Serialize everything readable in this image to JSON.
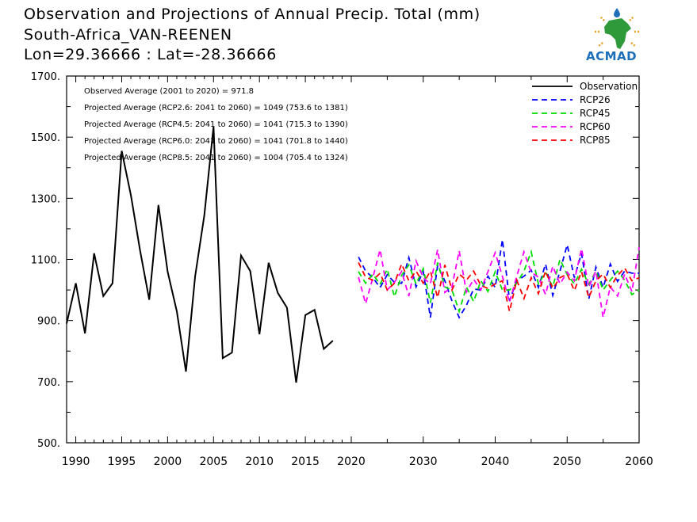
{
  "title": {
    "line1": "Observation and Projections of Annual Precip. Total (mm)",
    "line2": "South-Africa_VAN-REENEN",
    "line3": "Lon=29.36666 : Lat=-28.36666"
  },
  "logo": {
    "text": "ACMAD"
  },
  "annotations": [
    "Observed Average (2001 to 2020) = 971.8",
    "Projected Average (RCP2.6: 2041 to 2060) = 1049 (753.6 to 1381)",
    "Projected Average (RCP4.5: 2041 to 2060) = 1041 (715.3 to 1390)",
    "Projected Average (RCP6.0: 2041 to 2060) = 1041 (701.8 to 1440)",
    "Projected Average (RCP8.5: 2041 to 2060) = 1004 (705.4 to 1324)"
  ],
  "colors": {
    "observation": "#000000",
    "rcp26": "#0000ff",
    "rcp45": "#00dd00",
    "rcp60": "#ff00ff",
    "rcp85": "#ff0000"
  },
  "chart_data": {
    "type": "line",
    "xlim": [
      1989,
      2060
    ],
    "ylim": [
      500,
      1700
    ],
    "y_ticks": [
      500,
      700,
      900,
      1100,
      1300,
      1500,
      1700
    ],
    "y_tick_labels": [
      "500.",
      "700.",
      "900.",
      "1100.",
      "1300.",
      "1500.",
      "1700."
    ],
    "x_ticks_period1": [
      1990,
      1995,
      2000,
      2005,
      2010,
      2015,
      2020
    ],
    "x_ticks_period2": [
      2030,
      2040,
      2050,
      2060
    ],
    "x_tick_labels_period1": [
      "1990",
      "1995",
      "2000",
      "2005",
      "2010",
      "2015",
      "2020"
    ],
    "x_tick_labels_period2": [
      "2030",
      "2040",
      "2050",
      "2060"
    ],
    "break_year": 2020,
    "legend_position": "top-right",
    "grid": false,
    "observation": {
      "name": "Observation",
      "x": [
        1989,
        1990,
        1991,
        1992,
        1993,
        1994,
        1995,
        1996,
        1997,
        1998,
        1999,
        2000,
        2001,
        2002,
        2003,
        2004,
        2005,
        2006,
        2007,
        2008,
        2009,
        2010,
        2011,
        2012,
        2013,
        2014,
        2015,
        2016,
        2017,
        2018,
        2019
      ],
      "values": [
        890,
        1022,
        858,
        1120,
        980,
        1022,
        1455,
        1310,
        1130,
        968,
        1278,
        1060,
        930,
        733,
        1045,
        1245,
        1535,
        777,
        795,
        1113,
        1062,
        855,
        1089,
        990,
        942,
        697,
        918,
        935,
        807,
        834,
        null
      ]
    },
    "projection_years": [
      2021,
      2022,
      2023,
      2024,
      2025,
      2026,
      2027,
      2028,
      2029,
      2030,
      2031,
      2032,
      2033,
      2034,
      2035,
      2036,
      2037,
      2038,
      2039,
      2040,
      2041,
      2042,
      2043,
      2044,
      2045,
      2046,
      2047,
      2048,
      2049,
      2050,
      2051,
      2052,
      2053,
      2054,
      2055,
      2056,
      2057,
      2058,
      2059,
      2060
    ],
    "series": [
      {
        "name": "RCP26",
        "values": [
          1108,
          1062,
          1040,
          1008,
          1050,
          1025,
          1022,
          1106,
          1010,
          1060,
          910,
          1080,
          1030,
          964,
          910,
          950,
          1003,
          1000,
          1045,
          1008,
          1165,
          965,
          1030,
          1045,
          1065,
          1008,
          1085,
          982,
          1062,
          1148,
          1040,
          1120,
          970,
          1075,
          1008,
          1085,
          1028,
          1062,
          1055,
          1055
        ]
      },
      {
        "name": "RCP45",
        "values": [
          1060,
          1022,
          1052,
          1018,
          1068,
          978,
          1048,
          1082,
          1020,
          1070,
          958,
          1090,
          1010,
          1000,
          930,
          1010,
          962,
          1030,
          995,
          1060,
          1000,
          1000,
          1022,
          1062,
          1125,
          1020,
          1058,
          1010,
          1100,
          1050,
          1020,
          1068,
          1018,
          1062,
          1000,
          1032,
          1062,
          1032,
          985,
          1000
        ]
      },
      {
        "name": "RCP60",
        "values": [
          1042,
          955,
          1040,
          1132,
          1000,
          1025,
          1060,
          980,
          1095,
          1040,
          1020,
          1132,
          992,
          1010,
          1128,
          993,
          1035,
          1000,
          1060,
          1122,
          1045,
          960,
          1045,
          1125,
          1058,
          1042,
          985,
          1078,
          1020,
          1058,
          1030,
          1135,
          1010,
          1062,
          910,
          1010,
          980,
          1052,
          995,
          1140
        ]
      },
      {
        "name": "RCP85",
        "values": [
          1090,
          1042,
          1032,
          1055,
          1000,
          1022,
          1085,
          1030,
          1062,
          1022,
          1062,
          975,
          1082,
          1000,
          1052,
          1032,
          1062,
          1015,
          1005,
          1020,
          1030,
          930,
          1032,
          972,
          1040,
          988,
          1062,
          1005,
          1040,
          1052,
          998,
          1060,
          975,
          1030,
          1052,
          1008,
          1048,
          1072,
          1030,
          1040
        ]
      }
    ]
  }
}
